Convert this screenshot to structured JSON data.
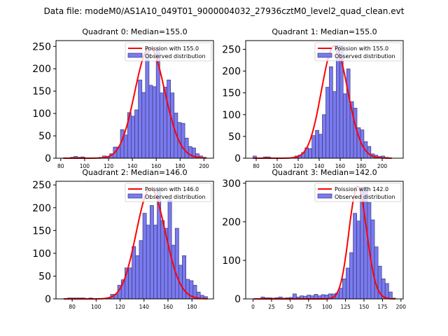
{
  "figure": {
    "suptitle": "Data file: modeM0/AS1A10_049T01_9000004032_27936cztM0_level2_quad_clean.evt"
  },
  "colors": {
    "bar_fill": "#7a7af0",
    "bar_edge": "#3a3a78",
    "curve": "#ff0000"
  },
  "chart_data": [
    {
      "type": "bar",
      "title": "Quadrant 0: Median=155.0",
      "xlabel": "",
      "ylabel": "",
      "xlim": [
        76,
        208
      ],
      "ylim": [
        0,
        263
      ],
      "xticks": [
        80,
        100,
        120,
        140,
        160,
        180,
        200
      ],
      "yticks": [
        0,
        50,
        100,
        150,
        200,
        250
      ],
      "legend": {
        "position": "top-right",
        "entries": [
          "Poission with 155.0",
          "Observed distribution"
        ]
      },
      "bin_width": 3,
      "bins_start": [
        82,
        85,
        88,
        91,
        94,
        97,
        100,
        103,
        106,
        109,
        112,
        115,
        118,
        121,
        124,
        127,
        130,
        133,
        136,
        139,
        142,
        145,
        148,
        151,
        154,
        157,
        160,
        163,
        166,
        169,
        172,
        175,
        178,
        181,
        184,
        187,
        190,
        193,
        196,
        199
      ],
      "values": [
        1,
        1,
        2,
        4,
        2,
        3,
        1,
        1,
        1,
        1,
        2,
        5,
        4,
        10,
        25,
        25,
        64,
        52,
        102,
        94,
        108,
        175,
        147,
        248,
        163,
        160,
        248,
        146,
        159,
        175,
        146,
        101,
        80,
        78,
        45,
        26,
        23,
        10,
        5,
        2
      ],
      "poisson_mean": 155.0,
      "poisson_peak": 248
    },
    {
      "type": "bar",
      "title": "Quadrant 1: Median=155.0",
      "xlabel": "",
      "ylabel": "",
      "xlim": [
        70,
        220
      ],
      "ylim": [
        0,
        270
      ],
      "xticks": [
        80,
        100,
        120,
        140,
        160,
        180,
        200
      ],
      "yticks": [
        0,
        50,
        100,
        150,
        200,
        250
      ],
      "legend": {
        "position": "top-right",
        "entries": [
          "Poission with 155.0",
          "Observed distribution"
        ]
      },
      "bin_width": 3.3,
      "bins_start": [
        77,
        80.3,
        83.6,
        86.9,
        90.2,
        93.5,
        96.8,
        100.1,
        103.4,
        106.7,
        110,
        113.3,
        116.6,
        119.9,
        123.2,
        126.5,
        129.8,
        133.1,
        136.4,
        139.7,
        143,
        146.3,
        149.6,
        152.9,
        156.2,
        159.5,
        162.8,
        166.1,
        169.4,
        172.7,
        176,
        179.3,
        182.6,
        185.9,
        189.2,
        192.5,
        195.8,
        199.1,
        202.4,
        205.7
      ],
      "values": [
        5,
        1,
        1,
        3,
        3,
        1,
        1,
        1,
        1,
        1,
        1,
        2,
        5,
        7,
        13,
        24,
        22,
        52,
        64,
        55,
        100,
        163,
        210,
        153,
        260,
        258,
        148,
        205,
        130,
        115,
        70,
        65,
        38,
        27,
        10,
        7,
        4,
        5,
        2,
        1
      ],
      "poisson_mean": 155.0,
      "poisson_peak": 258
    },
    {
      "type": "bar",
      "title": "Quadrant 2: Median=146.0",
      "xlabel": "",
      "ylabel": "",
      "xlim": [
        66.5,
        198
      ],
      "ylim": [
        0,
        258
      ],
      "xticks": [
        80,
        100,
        120,
        140,
        160,
        180
      ],
      "yticks": [
        0,
        50,
        100,
        150,
        200,
        250
      ],
      "legend": {
        "position": "top-right",
        "entries": [
          "Poission with 146.0",
          "Observed distribution"
        ]
      },
      "bin_width": 3,
      "bins_start": [
        73,
        76,
        79,
        82,
        85,
        88,
        91,
        94,
        97,
        100,
        103,
        106,
        109,
        112,
        115,
        118,
        121,
        124,
        127,
        130,
        133,
        136,
        139,
        142,
        145,
        148,
        151,
        154,
        157,
        160,
        163,
        166,
        169,
        172,
        175,
        178,
        181,
        184,
        187,
        190
      ],
      "values": [
        1,
        2,
        2,
        2,
        2,
        2,
        1,
        2,
        1,
        1,
        1,
        1,
        2,
        10,
        10,
        30,
        42,
        68,
        68,
        115,
        95,
        128,
        188,
        162,
        205,
        162,
        242,
        172,
        155,
        218,
        118,
        155,
        74,
        95,
        43,
        40,
        30,
        15,
        8,
        5
      ],
      "poisson_mean": 146.0,
      "poisson_peak": 242
    },
    {
      "type": "bar",
      "title": "Quadrant 3: Median=142.0",
      "xlabel": "",
      "ylabel": "",
      "xlim": [
        -10,
        203
      ],
      "ylim": [
        0,
        305
      ],
      "xticks": [
        0,
        25,
        50,
        75,
        100,
        125,
        150,
        175,
        200
      ],
      "yticks": [
        0,
        100,
        200,
        300
      ],
      "legend": {
        "position": "top-right",
        "entries": [
          "Poission with 142.0",
          "Observed distribution"
        ]
      },
      "bin_width": 4.8,
      "bins_start": [
        1,
        5.8,
        10.6,
        15.4,
        20.2,
        25,
        29.8,
        34.6,
        39.4,
        44.2,
        49,
        53.8,
        58.6,
        63.4,
        68.2,
        73,
        77.8,
        82.6,
        87.4,
        92.2,
        97,
        101.8,
        106.6,
        111.4,
        116.2,
        121,
        125.8,
        130.6,
        135.4,
        140.2,
        145,
        149.8,
        154.6,
        159.4,
        164.2,
        169,
        173.8,
        178.6,
        183.4,
        188.2
      ],
      "values": [
        1,
        1,
        5,
        3,
        3,
        2,
        3,
        5,
        2,
        3,
        4,
        13,
        5,
        8,
        7,
        10,
        8,
        12,
        8,
        11,
        10,
        13,
        13,
        15,
        28,
        52,
        80,
        120,
        222,
        202,
        290,
        290,
        250,
        205,
        135,
        85,
        52,
        40,
        18,
        2
      ],
      "poisson_mean": 142.0,
      "poisson_peak": 292
    }
  ]
}
